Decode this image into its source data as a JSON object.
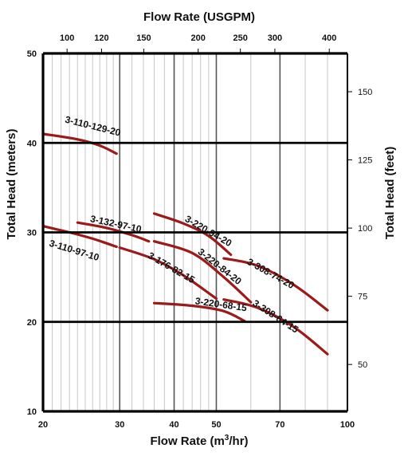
{
  "chart_data": {
    "type": "line",
    "title": "",
    "axes": {
      "bottom": {
        "label_prefix": "Flow Rate (m",
        "label_sup": "3",
        "label_suffix": "/hr)",
        "scale": "log",
        "range": [
          20,
          100
        ],
        "ticks": [
          "20",
          "30",
          "40",
          "50",
          "70",
          "100"
        ]
      },
      "top": {
        "label": "Flow Rate (USGPM)",
        "scale": "log",
        "ticks": [
          "100",
          "120",
          "150",
          "200",
          "250",
          "300",
          "400"
        ]
      },
      "left": {
        "label": "Total Head (meters)",
        "range": [
          10,
          50
        ],
        "ticks": [
          "10",
          "20",
          "30",
          "40",
          "50"
        ]
      },
      "right": {
        "label": "Total Head (feet)",
        "ticks": [
          "50",
          "75",
          "100",
          "125",
          "150"
        ]
      }
    },
    "grid": true,
    "series_color": "#9b1b1b",
    "series": [
      {
        "name": "3-110-129-20",
        "points": [
          [
            20,
            41
          ],
          [
            24,
            40.4
          ],
          [
            27,
            39.7
          ],
          [
            29.5,
            38.8
          ]
        ]
      },
      {
        "name": "3-110-97-10",
        "points": [
          [
            20,
            30.7
          ],
          [
            23,
            30
          ],
          [
            26,
            29.3
          ],
          [
            29.5,
            28.4
          ]
        ]
      },
      {
        "name": "3-132-97-10",
        "points": [
          [
            24,
            31.1
          ],
          [
            28,
            30.5
          ],
          [
            32,
            29.7
          ],
          [
            35,
            29
          ]
        ]
      },
      {
        "name": "3-176-82-15",
        "points": [
          [
            30,
            28.3
          ],
          [
            36,
            27
          ],
          [
            42,
            25.2
          ],
          [
            50,
            22.6
          ]
        ]
      },
      {
        "name": "3-220-94-20",
        "points": [
          [
            36,
            32.1
          ],
          [
            42,
            31
          ],
          [
            48,
            29.6
          ],
          [
            54,
            27.5
          ]
        ]
      },
      {
        "name": "3-220-84-20",
        "points": [
          [
            36,
            29
          ],
          [
            44,
            27.7
          ],
          [
            52,
            25
          ],
          [
            60,
            22.2
          ]
        ]
      },
      {
        "name": "3-220-68-15",
        "points": [
          [
            36,
            22.1
          ],
          [
            44,
            21.8
          ],
          [
            52,
            21.2
          ],
          [
            58,
            20.1
          ]
        ]
      },
      {
        "name": "3-308-74-20",
        "points": [
          [
            52,
            27.1
          ],
          [
            62,
            26.3
          ],
          [
            75,
            24.2
          ],
          [
            90,
            21.3
          ]
        ]
      },
      {
        "name": "3-308-64-15",
        "points": [
          [
            52,
            22.5
          ],
          [
            62,
            21.6
          ],
          [
            75,
            19.5
          ],
          [
            90,
            16.4
          ]
        ]
      }
    ]
  }
}
